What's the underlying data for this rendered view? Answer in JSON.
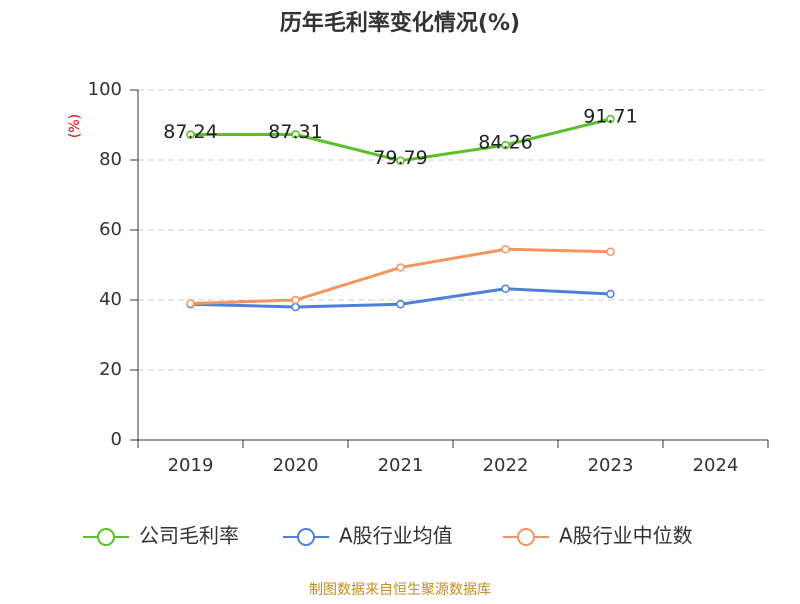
{
  "chart_data": {
    "type": "line",
    "title": "历年毛利率变化情况(%)",
    "y_label": "(%)",
    "categories": [
      "2019",
      "2020",
      "2021",
      "2022",
      "2023",
      "2024"
    ],
    "series": [
      {
        "name": "公司毛利率",
        "color": "#5bbf2a",
        "values": [
          87.24,
          87.31,
          79.79,
          84.26,
          91.71,
          null
        ],
        "show_labels": true
      },
      {
        "name": "A股行业均值",
        "color": "#4f80d9",
        "values": [
          38.8,
          38.0,
          38.8,
          43.2,
          41.7,
          null
        ],
        "show_labels": false
      },
      {
        "name": "A股行业中位数",
        "color": "#f5955d",
        "values": [
          39.0,
          40.0,
          49.3,
          54.5,
          53.8,
          null
        ],
        "show_labels": false
      }
    ],
    "ylim": [
      0,
      100
    ],
    "yticks": [
      0,
      20,
      40,
      60,
      80,
      100
    ],
    "grid": true,
    "source": "制图数据来自恒生聚源数据库"
  }
}
